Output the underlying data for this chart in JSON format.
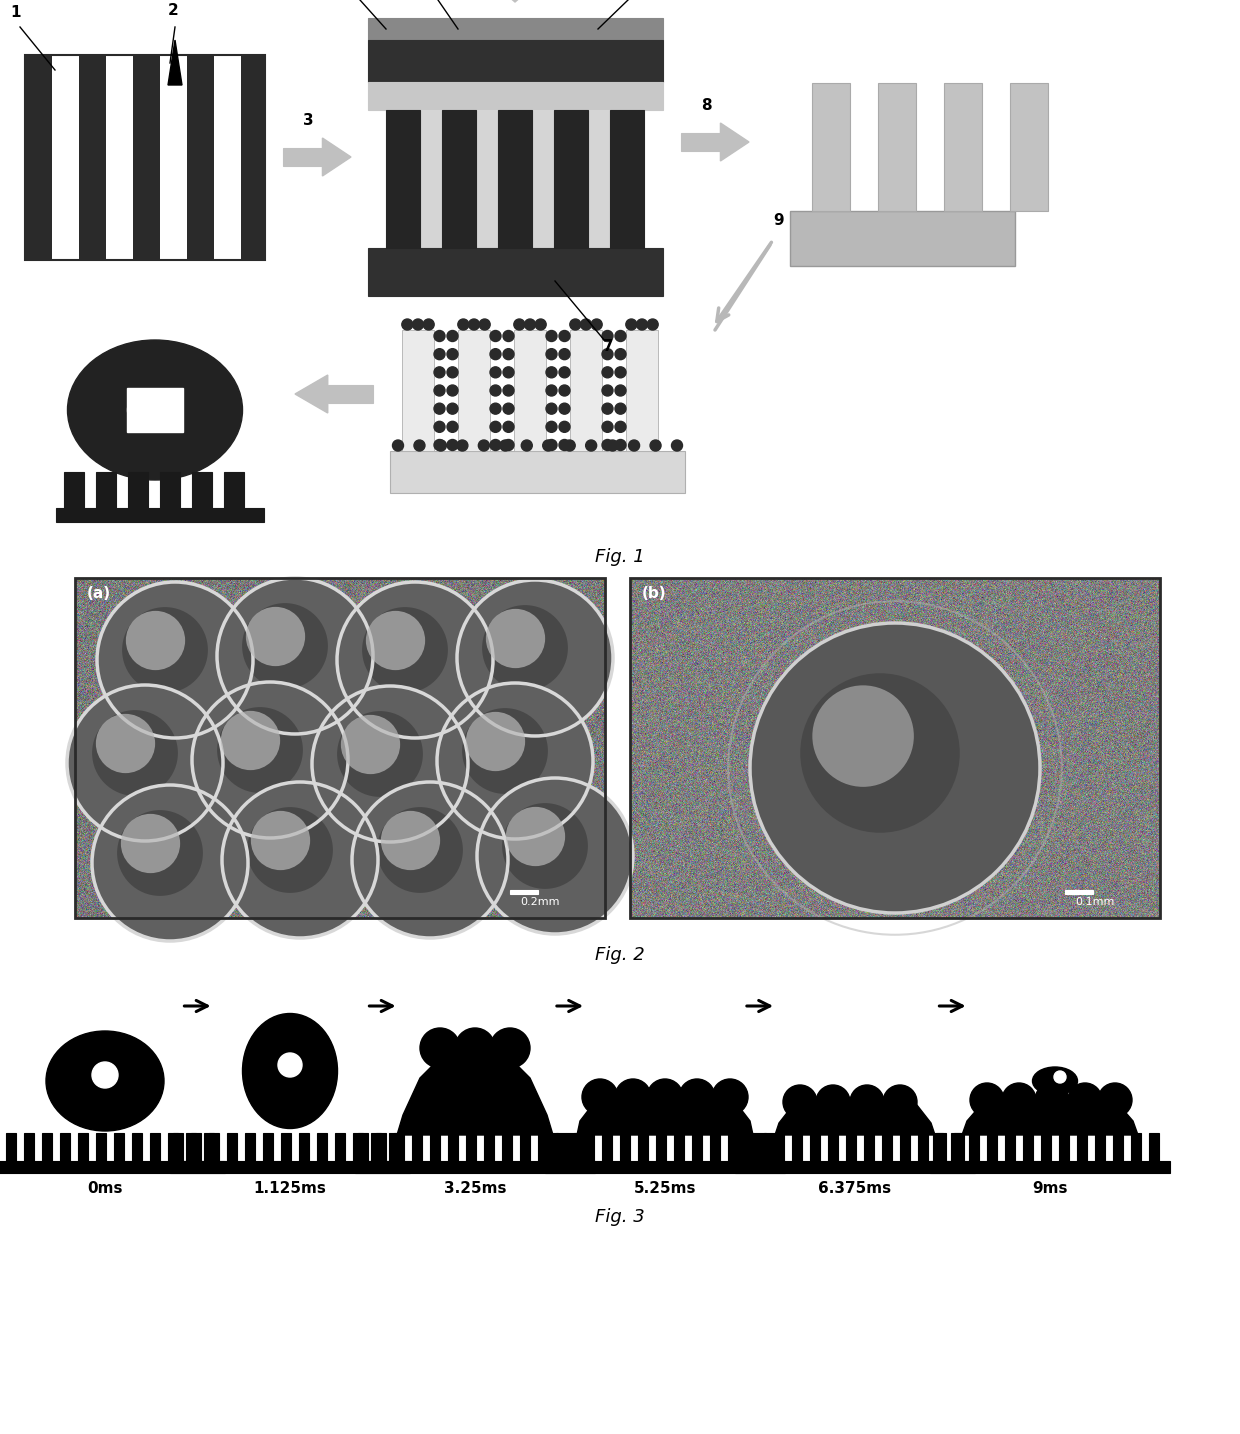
{
  "fig_width": 12.4,
  "fig_height": 14.34,
  "bg_color": "#ffffff",
  "black": "#000000",
  "dark": "#1a1a1a",
  "dark2": "#2a2a2a",
  "dgray": "#3a3a3a",
  "mgray": "#888888",
  "lgray": "#c8c8c8",
  "vlgray": "#e0e0e0",
  "arrow_color": "#b0b0b0",
  "label_fs": 11,
  "fig_label_fs": 13,
  "fig1_title": "Fig. 1",
  "fig2_title": "Fig. 2",
  "fig3_title": "Fig. 3",
  "timestamps": [
    "0ms",
    "1.125ms",
    "3.25ms",
    "5.25ms",
    "6.375ms",
    "9ms"
  ]
}
